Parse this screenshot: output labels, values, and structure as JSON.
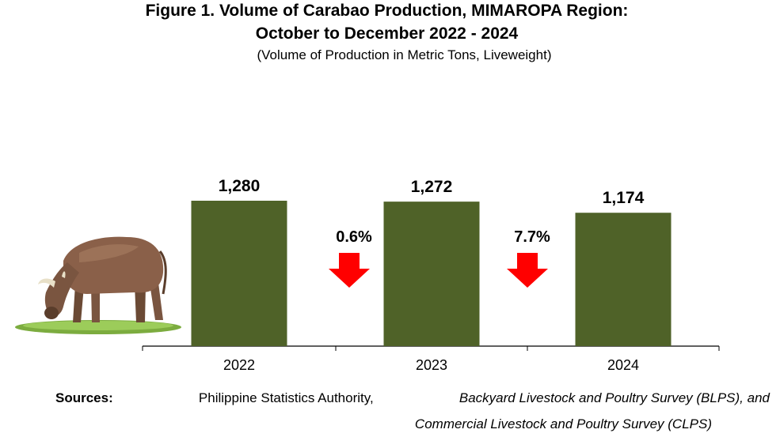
{
  "title_line1": "Figure 1. Volume of Carabao Production, MIMAROPA Region:",
  "title_line2": "October to December 2022 - 2024",
  "subtitle": "(Volume of Production in Metric Tons, Liveweight)",
  "chart_data": {
    "type": "bar",
    "categories": [
      "2022",
      "2023",
      "2024"
    ],
    "values": [
      1280,
      1272,
      1174
    ],
    "value_labels": [
      "1,280",
      "1,272",
      "1,174"
    ],
    "changes": [
      {
        "label": "0.6%",
        "direction": "down"
      },
      {
        "label": "7.7%",
        "direction": "down"
      }
    ],
    "ylim": [
      0,
      1350
    ],
    "grid": false,
    "legend": "none",
    "bar_color": "#4f6228",
    "arrow_color": "#ff0000"
  },
  "sources": {
    "label": "Sources:",
    "agency": "Philippine Statistics Authority,",
    "survey1": "Backyard Livestock and Poultry Survey (BLPS), and",
    "survey2": "Commercial Livestock and Poultry Survey (CLPS)"
  },
  "illustration": "carabao-icon"
}
